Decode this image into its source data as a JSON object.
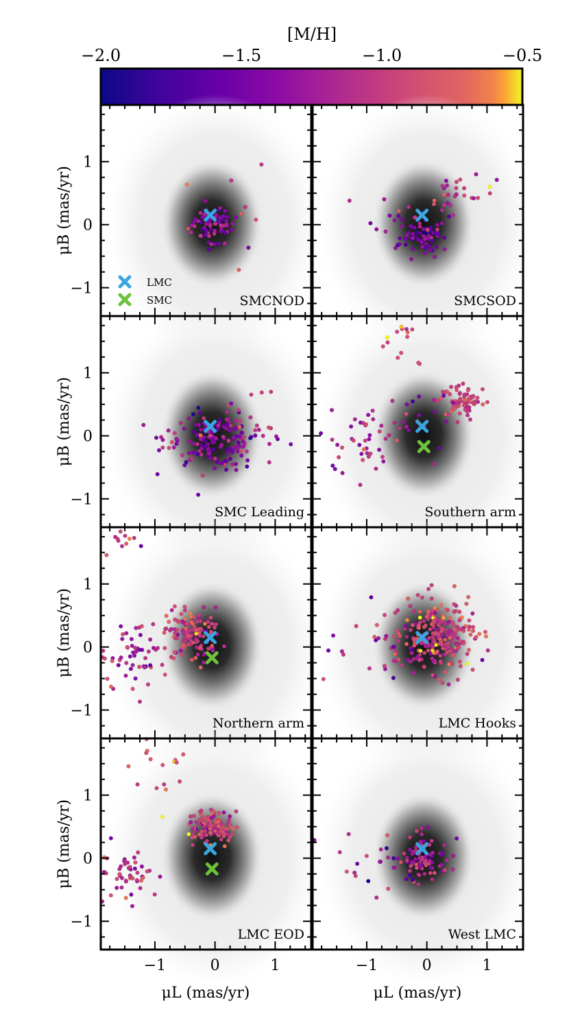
{
  "figure": {
    "colorbar": {
      "label": "[M/H]",
      "range": [
        -2.0,
        -0.5
      ],
      "ticks": [
        -2.0,
        -1.5,
        -1.0,
        -0.5
      ],
      "tick_labels": [
        "−2.0",
        "−1.5",
        "−1.0",
        "−0.5"
      ],
      "colormap": "plasma"
    },
    "xlabel": "μL (mas/yr)",
    "ylabel": "μB (mas/yr)",
    "x_ticks": [
      -1,
      0,
      1
    ],
    "x_tick_labels": [
      "−1",
      "0",
      "1"
    ],
    "y_ticks": [
      -1,
      0,
      1
    ],
    "y_tick_labels": [
      "−1",
      "0",
      "1"
    ],
    "legend": {
      "items": [
        {
          "label": "LMC",
          "color": "#3aa6e0"
        },
        {
          "label": "SMC",
          "color": "#6cc23a"
        }
      ]
    }
  },
  "chart_data": {
    "type": "scatter",
    "xlim": [
      -1.9,
      1.6
    ],
    "ylim": [
      -1.45,
      1.9
    ],
    "background": "density of field stars (gray 2D histogram)",
    "markers": {
      "LMC": {
        "x": -0.08,
        "y": 0.15,
        "color": "#3aa6e0"
      },
      "SMC": {
        "x": -0.05,
        "y": -0.17,
        "color": "#6cc23a"
      }
    },
    "panels": [
      {
        "name": "SMCNOD",
        "show_smc": false,
        "clusters": [
          {
            "cx": -0.05,
            "cy": 0.0,
            "sx": 0.17,
            "sy": 0.15,
            "n": 70,
            "m": -1.35,
            "ms": 0.18
          },
          {
            "cx": 0.3,
            "cy": 0.2,
            "sx": 0.5,
            "sy": 0.4,
            "n": 12,
            "m": -1.0,
            "ms": 0.25
          }
        ]
      },
      {
        "name": "SMCSOD",
        "show_smc": false,
        "clusters": [
          {
            "cx": -0.05,
            "cy": -0.2,
            "sx": 0.2,
            "sy": 0.15,
            "n": 65,
            "m": -1.45,
            "ms": 0.2
          },
          {
            "cx": 0.55,
            "cy": 0.45,
            "sx": 0.3,
            "sy": 0.15,
            "n": 30,
            "m": -1.05,
            "ms": 0.2
          },
          {
            "cx": -0.5,
            "cy": 0.0,
            "sx": 0.45,
            "sy": 0.3,
            "n": 12,
            "m": -1.2,
            "ms": 0.25
          }
        ]
      },
      {
        "name": "SMC Leading",
        "show_smc": false,
        "clusters": [
          {
            "cx": -0.05,
            "cy": -0.05,
            "sx": 0.4,
            "sy": 0.22,
            "n": 170,
            "m": -1.35,
            "ms": 0.22
          },
          {
            "cx": 0.35,
            "cy": 0.3,
            "sx": 0.4,
            "sy": 0.3,
            "n": 15,
            "m": -1.1,
            "ms": 0.25
          }
        ]
      },
      {
        "name": "Southern arm",
        "show_smc": true,
        "clusters": [
          {
            "cx": 0.6,
            "cy": 0.55,
            "sx": 0.2,
            "sy": 0.13,
            "n": 75,
            "m": -0.95,
            "ms": 0.15
          },
          {
            "cx": -1.1,
            "cy": -0.05,
            "sx": 0.35,
            "sy": 0.25,
            "n": 45,
            "m": -1.15,
            "ms": 0.2
          },
          {
            "cx": -0.45,
            "cy": 1.4,
            "sx": 0.3,
            "sy": 0.25,
            "n": 14,
            "m": -0.85,
            "ms": 0.15
          },
          {
            "cx": -0.2,
            "cy": 0.1,
            "sx": 0.3,
            "sy": 0.3,
            "n": 18,
            "m": -1.3,
            "ms": 0.25
          }
        ]
      },
      {
        "name": "Northern arm",
        "show_smc": true,
        "clusters": [
          {
            "cx": -0.35,
            "cy": 0.2,
            "sx": 0.22,
            "sy": 0.2,
            "n": 130,
            "m": -1.0,
            "ms": 0.18
          },
          {
            "cx": -1.3,
            "cy": -0.15,
            "sx": 0.35,
            "sy": 0.3,
            "n": 60,
            "m": -1.15,
            "ms": 0.2
          },
          {
            "cx": -1.5,
            "cy": 1.7,
            "sx": 0.15,
            "sy": 0.12,
            "n": 12,
            "m": -1.0,
            "ms": 0.15
          }
        ]
      },
      {
        "name": "LMC Hooks",
        "show_smc": false,
        "clusters": [
          {
            "cx": 0.2,
            "cy": 0.15,
            "sx": 0.3,
            "sy": 0.28,
            "n": 260,
            "m": -0.95,
            "ms": 0.2
          },
          {
            "cx": -0.7,
            "cy": -0.05,
            "sx": 0.4,
            "sy": 0.3,
            "n": 35,
            "m": -1.3,
            "ms": 0.25
          }
        ]
      },
      {
        "name": "LMC EOD",
        "show_smc": true,
        "clusters": [
          {
            "cx": -0.05,
            "cy": 0.5,
            "sx": 0.2,
            "sy": 0.12,
            "n": 130,
            "m": -0.95,
            "ms": 0.18
          },
          {
            "cx": -1.45,
            "cy": -0.25,
            "sx": 0.25,
            "sy": 0.2,
            "n": 50,
            "m": -1.05,
            "ms": 0.2
          },
          {
            "cx": -0.9,
            "cy": 1.5,
            "sx": 0.35,
            "sy": 0.25,
            "n": 16,
            "m": -0.8,
            "ms": 0.15
          }
        ]
      },
      {
        "name": "West LMC",
        "show_smc": false,
        "clusters": [
          {
            "cx": -0.05,
            "cy": 0.0,
            "sx": 0.22,
            "sy": 0.18,
            "n": 90,
            "m": -1.15,
            "ms": 0.22
          },
          {
            "cx": -0.9,
            "cy": -0.1,
            "sx": 0.4,
            "sy": 0.25,
            "n": 22,
            "m": -1.3,
            "ms": 0.25
          }
        ]
      }
    ]
  }
}
